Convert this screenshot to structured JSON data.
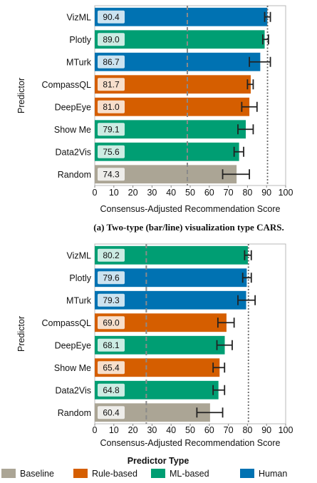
{
  "colors": {
    "Baseline": "#ABA595",
    "Rule-based": "#D55E00",
    "ML-based": "#009E73",
    "Human": "#0072B2"
  },
  "legend": {
    "title": "Predictor Type",
    "items": [
      "Baseline",
      "Rule-based",
      "ML-based",
      "Human"
    ]
  },
  "chart_data": [
    {
      "type": "bar",
      "orientation": "horizontal",
      "caption": "(a) Two-type (bar/line) visualization type CARS.",
      "ylabel": "Predictor",
      "xlabel": "Consensus-Adjusted Recommendation Score",
      "xlim": [
        0,
        100
      ],
      "xticks": [
        "0",
        "10",
        "20",
        "30",
        "40",
        "50",
        "60",
        "70",
        "80",
        "90",
        "100"
      ],
      "categories": [
        "VizML",
        "Plotly",
        "MTurk",
        "CompassQL",
        "DeepEye",
        "Show Me",
        "Data2Vis",
        "Random"
      ],
      "values": [
        90.4,
        89.0,
        86.7,
        81.7,
        81.0,
        79.1,
        75.6,
        74.3
      ],
      "value_labels": [
        "90.4",
        "89.0",
        "86.7",
        "81.7",
        "81.0",
        "79.1",
        "75.6",
        "74.3"
      ],
      "bar_end_values": [
        90.4,
        89.0,
        86.7,
        81.7,
        81.0,
        79.1,
        75.6,
        74.3
      ],
      "error_low": [
        89.0,
        88.0,
        81.0,
        80.0,
        77.0,
        75.0,
        73.0,
        67.0
      ],
      "error_high": [
        92.0,
        91.0,
        92.0,
        83.0,
        85.0,
        83.0,
        78.0,
        81.0
      ],
      "types": [
        "Human",
        "ML-based",
        "Human",
        "Rule-based",
        "Rule-based",
        "ML-based",
        "ML-based",
        "Baseline"
      ],
      "reference_lines": [
        {
          "x": 48.5,
          "style": "dashed"
        },
        {
          "x": 90.5,
          "style": "dotted"
        }
      ],
      "grid": false
    },
    {
      "type": "bar",
      "orientation": "horizontal",
      "caption": "",
      "ylabel": "Predictor",
      "xlabel": "Consensus-Adjusted Recommendation Score",
      "xlim": [
        0,
        100
      ],
      "xticks": [
        "0",
        "10",
        "20",
        "30",
        "40",
        "50",
        "60",
        "70",
        "80",
        "90",
        "100"
      ],
      "categories": [
        "VizML",
        "Plotly",
        "MTurk",
        "CompassQL",
        "DeepEye",
        "Show Me",
        "Data2Vis",
        "Random"
      ],
      "values": [
        80.2,
        79.6,
        79.3,
        69.0,
        68.1,
        65.4,
        64.8,
        60.4
      ],
      "value_labels": [
        "80.2",
        "79.6",
        "79.3",
        "69.0",
        "68.1",
        "65.4",
        "64.8",
        "60.4"
      ],
      "bar_end_values": [
        80.2,
        79.6,
        79.3,
        69.0,
        68.1,
        65.4,
        64.8,
        60.4
      ],
      "error_low": [
        78.5,
        77.5,
        75.0,
        64.5,
        64.0,
        62.0,
        62.0,
        53.5
      ],
      "error_high": [
        82.0,
        82.0,
        84.0,
        73.0,
        72.0,
        68.0,
        68.0,
        67.0
      ],
      "types": [
        "ML-based",
        "Human",
        "Human",
        "Rule-based",
        "ML-based",
        "Rule-based",
        "ML-based",
        "Baseline"
      ],
      "reference_lines": [
        {
          "x": 27.0,
          "style": "dashed"
        },
        {
          "x": 80.5,
          "style": "dotted"
        }
      ],
      "grid": false
    }
  ]
}
